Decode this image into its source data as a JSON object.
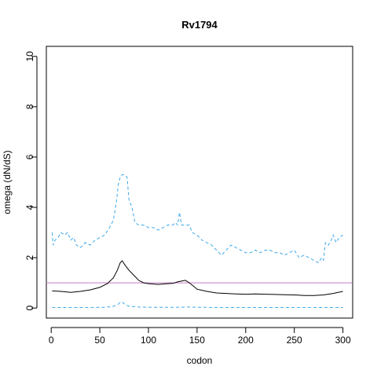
{
  "chart_data": {
    "type": "line",
    "title": "Rv1794",
    "xlabel": "codon",
    "ylabel": "omega (dN/dS)",
    "xlim": [
      -5,
      310
    ],
    "ylim": [
      -0.4,
      10.4
    ],
    "x_ticks": [
      0,
      50,
      100,
      150,
      200,
      250,
      300
    ],
    "y_ticks": [
      0,
      2,
      4,
      6,
      8,
      10
    ],
    "grid": false,
    "legend": "none",
    "reference_line": {
      "y": 1,
      "color": "#c77cc7"
    },
    "series": [
      {
        "role": "upper",
        "style": "dashed",
        "color": "#3fa9e8",
        "points": [
          [
            1,
            3.0
          ],
          [
            2,
            2.5
          ],
          [
            4,
            2.7
          ],
          [
            7,
            2.8
          ],
          [
            10,
            3.0
          ],
          [
            14,
            2.9
          ],
          [
            17,
            3.0
          ],
          [
            20,
            2.7
          ],
          [
            23,
            2.8
          ],
          [
            26,
            2.5
          ],
          [
            30,
            2.4
          ],
          [
            35,
            2.6
          ],
          [
            40,
            2.5
          ],
          [
            45,
            2.7
          ],
          [
            50,
            2.8
          ],
          [
            55,
            2.9
          ],
          [
            60,
            3.2
          ],
          [
            64,
            3.5
          ],
          [
            67,
            4.2
          ],
          [
            69,
            4.9
          ],
          [
            71,
            5.2
          ],
          [
            73,
            5.3
          ],
          [
            75,
            5.3
          ],
          [
            78,
            5.2
          ],
          [
            80,
            4.3
          ],
          [
            83,
            4.0
          ],
          [
            86,
            3.4
          ],
          [
            90,
            3.3
          ],
          [
            95,
            3.3
          ],
          [
            100,
            3.2
          ],
          [
            105,
            3.2
          ],
          [
            110,
            3.1
          ],
          [
            115,
            3.2
          ],
          [
            120,
            3.3
          ],
          [
            125,
            3.3
          ],
          [
            128,
            3.4
          ],
          [
            130,
            3.3
          ],
          [
            132,
            3.8
          ],
          [
            134,
            3.3
          ],
          [
            138,
            3.3
          ],
          [
            142,
            3.3
          ],
          [
            145,
            3.0
          ],
          [
            150,
            2.9
          ],
          [
            155,
            2.7
          ],
          [
            160,
            2.6
          ],
          [
            165,
            2.5
          ],
          [
            170,
            2.3
          ],
          [
            175,
            2.1
          ],
          [
            180,
            2.3
          ],
          [
            185,
            2.5
          ],
          [
            190,
            2.4
          ],
          [
            195,
            2.3
          ],
          [
            200,
            2.2
          ],
          [
            205,
            2.2
          ],
          [
            210,
            2.3
          ],
          [
            215,
            2.2
          ],
          [
            220,
            2.3
          ],
          [
            225,
            2.3
          ],
          [
            230,
            2.2
          ],
          [
            235,
            2.2
          ],
          [
            240,
            2.1
          ],
          [
            245,
            2.2
          ],
          [
            250,
            2.3
          ],
          [
            255,
            2.0
          ],
          [
            260,
            2.1
          ],
          [
            265,
            2.0
          ],
          [
            270,
            1.9
          ],
          [
            275,
            1.8
          ],
          [
            278,
            2.0
          ],
          [
            280,
            1.9
          ],
          [
            282,
            2.6
          ],
          [
            285,
            2.5
          ],
          [
            288,
            2.7
          ],
          [
            290,
            2.9
          ],
          [
            293,
            2.6
          ],
          [
            296,
            2.8
          ],
          [
            300,
            2.9
          ]
        ]
      },
      {
        "role": "estimate",
        "style": "solid",
        "color": "#000000",
        "points": [
          [
            1,
            0.68
          ],
          [
            10,
            0.66
          ],
          [
            20,
            0.62
          ],
          [
            30,
            0.66
          ],
          [
            40,
            0.72
          ],
          [
            50,
            0.82
          ],
          [
            58,
            0.98
          ],
          [
            64,
            1.2
          ],
          [
            68,
            1.5
          ],
          [
            71,
            1.8
          ],
          [
            73,
            1.88
          ],
          [
            76,
            1.7
          ],
          [
            80,
            1.5
          ],
          [
            85,
            1.3
          ],
          [
            90,
            1.1
          ],
          [
            95,
            1.0
          ],
          [
            100,
            0.97
          ],
          [
            110,
            0.94
          ],
          [
            120,
            0.97
          ],
          [
            125,
            0.98
          ],
          [
            130,
            1.04
          ],
          [
            135,
            1.08
          ],
          [
            138,
            1.1
          ],
          [
            142,
            1.0
          ],
          [
            146,
            0.88
          ],
          [
            150,
            0.75
          ],
          [
            160,
            0.66
          ],
          [
            170,
            0.6
          ],
          [
            180,
            0.58
          ],
          [
            190,
            0.56
          ],
          [
            200,
            0.55
          ],
          [
            210,
            0.56
          ],
          [
            220,
            0.55
          ],
          [
            230,
            0.54
          ],
          [
            240,
            0.53
          ],
          [
            250,
            0.52
          ],
          [
            260,
            0.5
          ],
          [
            270,
            0.5
          ],
          [
            280,
            0.52
          ],
          [
            290,
            0.58
          ],
          [
            300,
            0.66
          ]
        ]
      },
      {
        "role": "lower",
        "style": "dashed",
        "color": "#3fa9e8",
        "points": [
          [
            1,
            0.02
          ],
          [
            20,
            0.02
          ],
          [
            40,
            0.02
          ],
          [
            55,
            0.03
          ],
          [
            63,
            0.06
          ],
          [
            68,
            0.12
          ],
          [
            71,
            0.22
          ],
          [
            73,
            0.24
          ],
          [
            76,
            0.14
          ],
          [
            80,
            0.07
          ],
          [
            90,
            0.04
          ],
          [
            100,
            0.03
          ],
          [
            130,
            0.03
          ],
          [
            140,
            0.04
          ],
          [
            150,
            0.03
          ],
          [
            180,
            0.02
          ],
          [
            220,
            0.02
          ],
          [
            260,
            0.02
          ],
          [
            300,
            0.02
          ]
        ]
      }
    ]
  }
}
